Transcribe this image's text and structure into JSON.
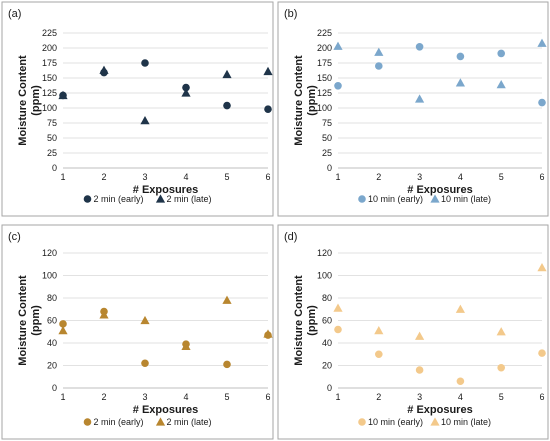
{
  "chart_data": [
    {
      "type": "scatter",
      "panel_label": "(a)",
      "xlabel": "# Exposures",
      "ylabel_lines": [
        "Moisture Content",
        "(ppm)"
      ],
      "xlim": [
        1,
        6
      ],
      "ylim": [
        0,
        225
      ],
      "yticks": [
        0,
        25,
        50,
        75,
        100,
        125,
        150,
        175,
        200,
        225
      ],
      "xticks": [
        1,
        2,
        3,
        4,
        5,
        6
      ],
      "grid": "horizontal",
      "legend_position": "bottom",
      "series": [
        {
          "name": "2 min (early)",
          "marker": "circle",
          "color": "#1f3449",
          "x": [
            1,
            2,
            3,
            4,
            5,
            6
          ],
          "y": [
            121,
            159,
            175,
            134,
            104,
            98
          ]
        },
        {
          "name": "2 min (late)",
          "marker": "triangle",
          "color": "#1f3449",
          "x": [
            1,
            2,
            3,
            4,
            5,
            6
          ],
          "y": [
            121,
            163,
            79,
            125,
            156,
            161
          ]
        }
      ]
    },
    {
      "type": "scatter",
      "panel_label": "(b)",
      "xlabel": "# Exposures",
      "ylabel_lines": [
        "Moisture Content",
        "(ppm)"
      ],
      "xlim": [
        1,
        6
      ],
      "ylim": [
        0,
        225
      ],
      "yticks": [
        0,
        25,
        50,
        75,
        100,
        125,
        150,
        175,
        200,
        225
      ],
      "xticks": [
        1,
        2,
        3,
        4,
        5,
        6
      ],
      "grid": "horizontal",
      "legend_position": "bottom",
      "series": [
        {
          "name": "10 min (early)",
          "marker": "circle",
          "color": "#7ba7cc",
          "x": [
            1,
            2,
            3,
            4,
            5,
            6
          ],
          "y": [
            137,
            170,
            202,
            186,
            191,
            109
          ]
        },
        {
          "name": "10 min (late)",
          "marker": "triangle",
          "color": "#7ba7cc",
          "x": [
            1,
            2,
            3,
            4,
            5,
            6
          ],
          "y": [
            203,
            193,
            115,
            142,
            139,
            208
          ]
        }
      ]
    },
    {
      "type": "scatter",
      "panel_label": "(c)",
      "xlabel": "# Exposures",
      "ylabel_lines": [
        "Moisture Content",
        "(ppm)"
      ],
      "xlim": [
        1,
        6
      ],
      "ylim": [
        0,
        120
      ],
      "yticks": [
        0,
        20,
        40,
        60,
        80,
        100,
        120
      ],
      "xticks": [
        1,
        2,
        3,
        4,
        5,
        6
      ],
      "grid": "horizontal",
      "legend_position": "bottom",
      "series": [
        {
          "name": "2 min (early)",
          "marker": "circle",
          "color": "#b8862f",
          "x": [
            1,
            2,
            3,
            4,
            5,
            6
          ],
          "y": [
            57,
            68,
            22,
            39,
            21,
            47
          ]
        },
        {
          "name": "2 min (late)",
          "marker": "triangle",
          "color": "#b8862f",
          "x": [
            1,
            2,
            3,
            4,
            5,
            6
          ],
          "y": [
            51,
            65,
            60,
            37,
            78,
            48
          ]
        }
      ]
    },
    {
      "type": "scatter",
      "panel_label": "(d)",
      "xlabel": "# Exposures",
      "ylabel_lines": [
        "Moisture Content",
        "(ppm)"
      ],
      "xlim": [
        1,
        6
      ],
      "ylim": [
        0,
        120
      ],
      "yticks": [
        0,
        20,
        40,
        60,
        80,
        100,
        120
      ],
      "xticks": [
        1,
        2,
        3,
        4,
        5,
        6
      ],
      "grid": "horizontal",
      "legend_position": "bottom",
      "series": [
        {
          "name": "10 min (early)",
          "marker": "circle",
          "color": "#f3c98b",
          "x": [
            1,
            2,
            3,
            4,
            5,
            6
          ],
          "y": [
            52,
            30,
            16,
            6,
            18,
            31
          ]
        },
        {
          "name": "10 min (late)",
          "marker": "triangle",
          "color": "#f3c98b",
          "x": [
            1,
            2,
            3,
            4,
            5,
            6
          ],
          "y": [
            71,
            51,
            46,
            70,
            50,
            107
          ]
        }
      ]
    }
  ]
}
